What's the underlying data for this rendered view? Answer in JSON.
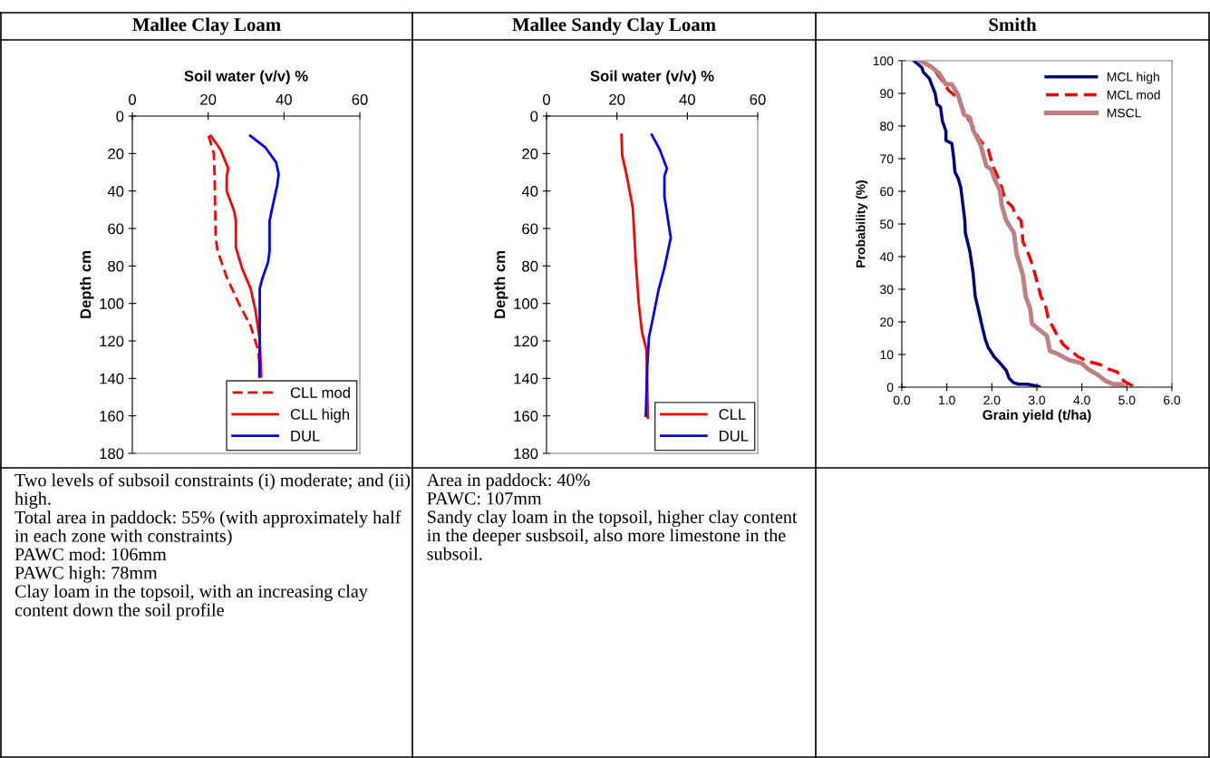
{
  "chart_data": [
    {
      "type": "line",
      "title": "Mallee Clay Loam",
      "xlabel": "Soil water (v/v) %",
      "ylabel": "Depth cm",
      "xlim": [
        0,
        60
      ],
      "xticks": [
        0,
        20,
        40,
        60
      ],
      "ylim": [
        180,
        0
      ],
      "yticks": [
        0,
        20,
        40,
        60,
        80,
        100,
        120,
        140,
        160,
        180
      ],
      "legend": "bottom right",
      "series": [
        {
          "name": "CLL mod",
          "color": "#ff0000",
          "line_style": "dashed",
          "x": [
            20.1,
            21.5,
            21.7,
            22,
            22.5,
            24.9,
            28.1,
            31.2,
            33.2,
            33.8
          ],
          "values": [
            10.5,
            20,
            32,
            65,
            72,
            86,
            100,
            112,
            125,
            139
          ]
        },
        {
          "name": "CLL high",
          "color": "#ff0000",
          "line_style": "solid",
          "x": [
            20.7,
            23.3,
            25.3,
            24.9,
            24.9,
            26.9,
            27.3,
            27.3,
            28.9,
            31.2,
            32.4,
            33.6,
            34
          ],
          "values": [
            10.5,
            18,
            28,
            32,
            40,
            51,
            56,
            70,
            81,
            92,
            103,
            119,
            139
          ]
        },
        {
          "name": "DUL",
          "color": "#0000ff",
          "line_style": "solid",
          "x": [
            31.1,
            35.1,
            37.9,
            38.6,
            38.2,
            36.8,
            36.2,
            36.2,
            35.8,
            34.4,
            33.6,
            33.6,
            33.5
          ],
          "values": [
            10.5,
            16.8,
            24.6,
            31,
            37,
            50,
            56,
            72,
            78,
            86,
            92,
            119,
            139
          ]
        }
      ],
      "annotations": [
        "Two levels of subsoil constraints (i) moderate; and (ii) high.",
        "Total area in paddock: 55% (with approximately half in each zone with constraints)",
        "PAWC mod: 106mm",
        "PAWC high: 78mm",
        "Clay loam in the topsoil, with an increasing clay content down the soil profile"
      ]
    },
    {
      "type": "line",
      "title": "Mallee Sandy Clay Loam",
      "xlabel": "Soil water (v/v) %",
      "ylabel": "Depth cm",
      "xlim": [
        0,
        60
      ],
      "xticks": [
        0,
        20,
        40,
        60
      ],
      "ylim": [
        180,
        0
      ],
      "yticks": [
        0,
        20,
        40,
        60,
        80,
        100,
        120,
        140,
        160,
        180
      ],
      "legend": "bottom right",
      "series": [
        {
          "name": "CLL",
          "color": "#ff0000",
          "line_style": "solid",
          "x": [
            21.3,
            21.5,
            22.8,
            24.5,
            24.9,
            25.4,
            26.2,
            27.1,
            28.4,
            28.8
          ],
          "values": [
            10,
            21,
            32,
            49,
            62,
            79,
            100,
            115,
            125,
            161
          ]
        },
        {
          "name": "DUL",
          "color": "#0000ff",
          "line_style": "solid",
          "x": [
            29.9,
            32.2,
            34.2,
            33.5,
            33.5,
            34.8,
            35.3,
            33.5,
            31.8,
            30.1,
            29.1,
            28.6,
            28.2
          ],
          "values": [
            10,
            18,
            28,
            32,
            43,
            59,
            65,
            81,
            93,
            109,
            118,
            134,
            160
          ]
        }
      ],
      "annotations": [
        "Area in paddock: 40%",
        "PAWC: 107mm",
        "Sandy clay loam in the topsoil, higher clay content in the deeper susbsoil, also more limestone in the subsoil."
      ]
    },
    {
      "type": "line",
      "title": "Smith",
      "xlabel": "Grain yield (t/ha)",
      "ylabel": "Probability (%)",
      "xlim": [
        0,
        6
      ],
      "xticks": [
        {
          "value": 0,
          "label": "0.0"
        },
        {
          "value": 1,
          "label": "1.0"
        },
        {
          "value": 2,
          "label": "2.0"
        },
        {
          "value": 3,
          "label": "3.0"
        },
        {
          "value": 4,
          "label": "4.0"
        },
        {
          "value": 5,
          "label": "5.0"
        },
        {
          "value": 6,
          "label": "6.0"
        }
      ],
      "ylim": [
        0,
        100
      ],
      "yticks": [
        0,
        10,
        20,
        30,
        40,
        50,
        60,
        70,
        80,
        90,
        100
      ],
      "legend": "top right",
      "series": [
        {
          "name": "MCL high",
          "color": "#000080",
          "line_style": "solid",
          "x": [
            0.27,
            0.44,
            0.48,
            0.61,
            0.66,
            0.74,
            0.78,
            0.86,
            0.9,
            0.98,
            0.98,
            1.11,
            1.15,
            1.18,
            1.25,
            1.31,
            1.35,
            1.4,
            1.41,
            1.51,
            1.58,
            1.63,
            1.71,
            1.77,
            1.85,
            1.92,
            1.97,
            2.05,
            2.18,
            2.32,
            2.38,
            2.48,
            2.59,
            2.79,
            3.05
          ],
          "values": [
            100,
            98,
            96.5,
            94.6,
            92.8,
            90,
            86.7,
            85.8,
            81.6,
            78.4,
            75.6,
            74.7,
            70.5,
            65.9,
            64,
            61.2,
            56.6,
            51,
            47.3,
            41.7,
            35.3,
            27.8,
            23.2,
            19.5,
            14.8,
            12.1,
            11.1,
            9.3,
            7.4,
            5.1,
            2.8,
            1.4,
            0.9,
            0.9,
            0.2
          ]
        },
        {
          "name": "MCL mod",
          "color": "#ff0000",
          "line_style": "dashed",
          "x": [
            0.41,
            0.71,
            0.91,
            1.04,
            1.25,
            1.38,
            1.58,
            1.71,
            1.92,
            2.02,
            2.12,
            2.22,
            2.29,
            2.46,
            2.52,
            2.65,
            2.69,
            2.79,
            2.91,
            3.02,
            3.09,
            3.19,
            3.25,
            3.42,
            3.59,
            3.76,
            3.92,
            4.13,
            4.39,
            4.59,
            4.79,
            4.93,
            5.06,
            5.19
          ],
          "values": [
            100,
            97.4,
            93.7,
            90.9,
            88.6,
            84.4,
            79.8,
            76.1,
            72.8,
            67.7,
            64.9,
            61.2,
            57.5,
            55.2,
            52.9,
            51,
            44.5,
            41.7,
            37.1,
            31.5,
            27.8,
            25,
            21.3,
            16.7,
            13,
            11.1,
            9.3,
            7.9,
            7,
            5.6,
            4.6,
            1.9,
            0.9,
            0
          ]
        },
        {
          "name": "MSCL",
          "color": "#c08080",
          "line_style": "solid",
          "x": [
            0.41,
            0.64,
            0.84,
            0.98,
            1.11,
            1.25,
            1.38,
            1.51,
            1.58,
            1.75,
            1.88,
            1.98,
            2.08,
            2.18,
            2.22,
            2.32,
            2.49,
            2.55,
            2.69,
            2.75,
            2.85,
            2.89,
            3.05,
            3.22,
            3.29,
            3.46,
            3.72,
            3.99,
            4.13,
            4.36,
            4.53,
            4.7,
            4.86,
            4.96
          ],
          "values": [
            100,
            98.3,
            96,
            92.8,
            92.8,
            89.6,
            83.5,
            82.6,
            78.9,
            74.2,
            67.7,
            66.8,
            63.1,
            60.3,
            55.7,
            51,
            47.3,
            40.8,
            34.3,
            27.8,
            24.1,
            19.5,
            17.6,
            15.8,
            11.1,
            10.2,
            8.3,
            7.4,
            5.6,
            3.7,
            1.9,
            0.9,
            0.9,
            0
          ]
        }
      ]
    }
  ]
}
